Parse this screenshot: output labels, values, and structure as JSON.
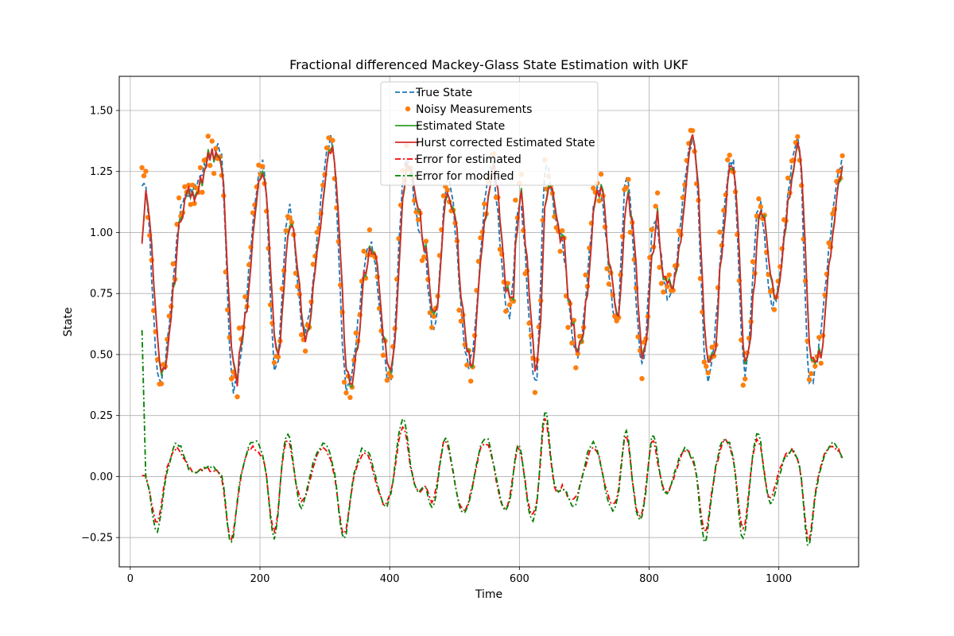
{
  "chart_data": {
    "type": "line",
    "title": "Fractional differenced Mackey-Glass State Estimation with UKF",
    "xlabel": "Time",
    "ylabel": "State",
    "xlim": [
      -17,
      1123
    ],
    "ylim": [
      -0.37,
      1.64
    ],
    "x_ticks": [
      0,
      200,
      400,
      600,
      800,
      1000
    ],
    "y_ticks": [
      -0.25,
      0.0,
      0.25,
      0.5,
      0.75,
      1.0,
      1.25,
      1.5
    ],
    "x_tick_labels": [
      "0",
      "200",
      "400",
      "600",
      "800",
      "1000"
    ],
    "y_tick_labels": [
      "−0.25",
      "0.00",
      "0.25",
      "0.50",
      "0.75",
      "1.00",
      "1.25",
      "1.50"
    ],
    "grid": true,
    "legend_position": "top-center",
    "approximate_series": {
      "x_start": 18,
      "x_end": 1100,
      "step": 3,
      "state_min_points": [
        [
          45,
          0.39
        ],
        [
          159,
          0.36
        ],
        [
          224,
          0.43
        ],
        [
          268,
          0.6
        ],
        [
          334,
          0.36
        ],
        [
          400,
          0.39
        ],
        [
          468,
          0.6
        ],
        [
          522,
          0.46
        ],
        [
          584,
          0.66
        ],
        [
          625,
          0.38
        ],
        [
          689,
          0.5
        ],
        [
          750,
          0.63
        ],
        [
          790,
          0.46
        ],
        [
          830,
          0.73
        ],
        [
          890,
          0.4
        ],
        [
          948,
          0.43
        ],
        [
          990,
          0.7
        ],
        [
          1048,
          0.38
        ]
      ],
      "state_max_points": [
        [
          22,
          1.2
        ],
        [
          85,
          1.15
        ],
        [
          138,
          1.35
        ],
        [
          205,
          1.28
        ],
        [
          245,
          1.1
        ],
        [
          310,
          1.38
        ],
        [
          370,
          0.95
        ],
        [
          425,
          1.3
        ],
        [
          450,
          0.98
        ],
        [
          490,
          1.22
        ],
        [
          556,
          1.27
        ],
        [
          600,
          1.12
        ],
        [
          641,
          1.28
        ],
        [
          660,
          1.02
        ],
        [
          722,
          1.18
        ],
        [
          765,
          1.23
        ],
        [
          808,
          1.05
        ],
        [
          868,
          1.38
        ],
        [
          928,
          1.3
        ],
        [
          970,
          1.12
        ],
        [
          1030,
          1.38
        ],
        [
          1100,
          1.3
        ]
      ],
      "error_range": [
        -0.28,
        0.26
      ]
    },
    "series": [
      {
        "name": "True State",
        "color": "#1f77b4",
        "style": "dashed"
      },
      {
        "name": "Noisy Measurements",
        "color": "#ff7f0e",
        "style": "markers"
      },
      {
        "name": "Estimated State",
        "color": "#2ca02c",
        "style": "solid"
      },
      {
        "name": "Hurst corrected Estimated State",
        "color": "#d62728",
        "style": "solid"
      },
      {
        "name": "Error for estimated",
        "color": "#ff0000",
        "style": "dashdot"
      },
      {
        "name": "Error for modified",
        "color": "#008000",
        "style": "dashdot"
      }
    ]
  }
}
